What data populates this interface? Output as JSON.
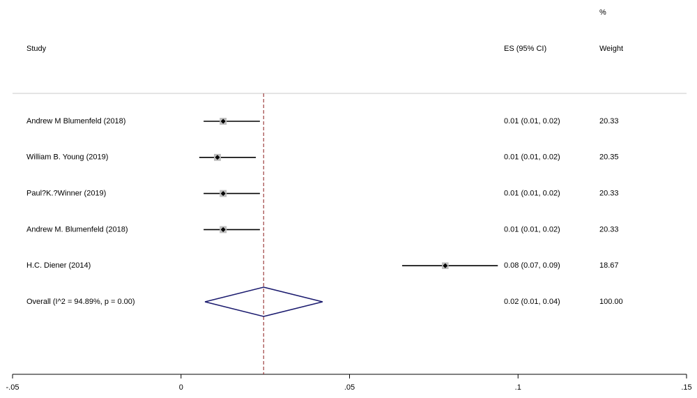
{
  "chart_data": {
    "type": "forest",
    "headers": {
      "study": "Study",
      "es": "ES (95% CI)",
      "weight_top": "%",
      "weight": "Weight"
    },
    "studies": [
      {
        "name": "Andrew M Blumenfeld (2018)",
        "es": 0.0125,
        "lo": 0.0067,
        "hi": 0.0234,
        "es_label": "0.01 (0.01, 0.02)",
        "weight": 20.33
      },
      {
        "name": "William B. Young (2019)",
        "es": 0.0108,
        "lo": 0.0054,
        "hi": 0.0222,
        "es_label": "0.01 (0.01, 0.02)",
        "weight": 20.35
      },
      {
        "name": "Paul?K.?Winner (2019)",
        "es": 0.0125,
        "lo": 0.0067,
        "hi": 0.0234,
        "es_label": "0.01 (0.01, 0.02)",
        "weight": 20.33
      },
      {
        "name": "Andrew M. Blumenfeld (2018)",
        "es": 0.0125,
        "lo": 0.0067,
        "hi": 0.0234,
        "es_label": "0.01 (0.01, 0.02)",
        "weight": 20.33
      },
      {
        "name": "H.C. Diener (2014)",
        "es": 0.0784,
        "lo": 0.0656,
        "hi": 0.094,
        "es_label": "0.08 (0.07, 0.09)",
        "weight": 18.67
      }
    ],
    "overall": {
      "name": "Overall  (I^2 = 94.89%, p = 0.00)",
      "es": 0.0245,
      "lo": 0.0071,
      "hi": 0.042,
      "es_label": "0.02 (0.01, 0.04)",
      "weight": 100,
      "weight_label": "100.00"
    },
    "xlim": [
      -0.05,
      0.15
    ],
    "xticks": [
      {
        "value": -0.05,
        "label": "-.05"
      },
      0,
      {
        "value": 0.05,
        "label": ".05"
      },
      {
        "value": 0.1,
        "label": ".1"
      },
      {
        "value": 0.15,
        "label": ".15"
      }
    ],
    "ci_color": "#000000",
    "diamond_color": "#1a1a6e",
    "ref_line_color": "#8b1a1a"
  }
}
